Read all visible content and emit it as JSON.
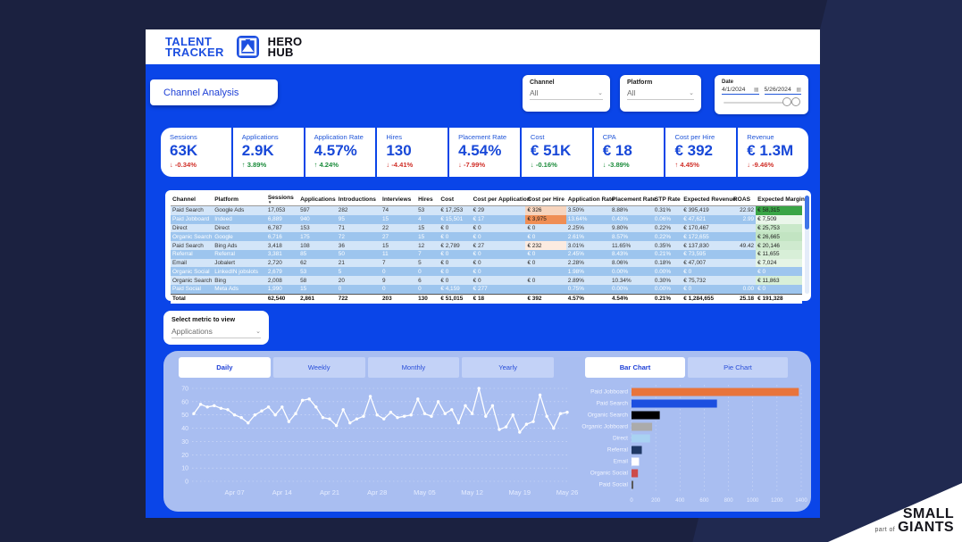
{
  "colors": {
    "canvas_blue": "#0a45e8",
    "dark_background": "#1b2140",
    "panel_blue": "#a9bef1",
    "kpi_value_blue": "#1848d8",
    "good_green": "#1c8c3c",
    "bad_red": "#d02f28"
  },
  "logo": {
    "brand_line1": "TALENT",
    "brand_line2": "TRACKER",
    "product_line1": "HERO",
    "product_line2": "HUB"
  },
  "page": {
    "tab": "Channel Analysis"
  },
  "filters": {
    "channel": {
      "label": "Channel",
      "value": "All"
    },
    "platform": {
      "label": "Platform",
      "value": "All"
    },
    "date": {
      "label": "Date",
      "start": "4/1/2024",
      "end": "5/26/2024"
    }
  },
  "kpis": [
    {
      "label": "Sessions",
      "value": "63K",
      "arrow": "↓",
      "delta": "-0.34%",
      "sentiment": "bad"
    },
    {
      "label": "Applications",
      "value": "2.9K",
      "arrow": "↑",
      "delta": "3.89%",
      "sentiment": "good"
    },
    {
      "label": "Application Rate",
      "value": "4.57%",
      "arrow": "↑",
      "delta": "4.24%",
      "sentiment": "good"
    },
    {
      "label": "Hires",
      "value": "130",
      "arrow": "↓",
      "delta": "-4.41%",
      "sentiment": "bad"
    },
    {
      "label": "Placement Rate",
      "value": "4.54%",
      "arrow": "↓",
      "delta": "-7.99%",
      "sentiment": "bad"
    },
    {
      "label": "Cost",
      "value": "€ 51K",
      "arrow": "↓",
      "delta": "-0.16%",
      "sentiment": "good"
    },
    {
      "label": "CPA",
      "value": "€ 18",
      "arrow": "↓",
      "delta": "-3.89%",
      "sentiment": "good"
    },
    {
      "label": "Cost per Hire",
      "value": "€ 392",
      "arrow": "↑",
      "delta": "4.45%",
      "sentiment": "bad"
    },
    {
      "label": "Revenue",
      "value": "€ 1.3M",
      "arrow": "↓",
      "delta": "-9.46%",
      "sentiment": "bad"
    }
  ],
  "table": {
    "columns": [
      "Channel",
      "Platform",
      "Sessions",
      "Applications",
      "Introductions",
      "Interviews",
      "Hires",
      "Cost",
      "Cost per Application",
      "Cost per Hire",
      "Application Rate",
      "Placement Rate",
      "STP Rate",
      "Expected Revenue",
      "ROAS",
      "Expected Margin"
    ],
    "sorted_column_index": 2,
    "col_widths": [
      7.3,
      9.2,
      5.6,
      6.6,
      7.6,
      6.2,
      3.9,
      5.6,
      9.4,
      7.0,
      7.6,
      7.4,
      5.0,
      8.6,
      4.2,
      8.0
    ],
    "rows": [
      {
        "cells": [
          "Paid Search",
          "Google Ads",
          "17,053",
          "597",
          "282",
          "74",
          "53",
          "€ 17,253",
          "€ 29",
          "€ 326",
          "3.50%",
          "8.88%",
          "0.31%",
          "€ 395,419",
          "22.92",
          "€ 58,315"
        ],
        "hl": {
          "9": "#f7d4bd",
          "15": "#3aa546"
        }
      },
      {
        "cells": [
          "Paid Jobboard",
          "Indeed",
          "6,889",
          "940",
          "95",
          "15",
          "4",
          "€ 15,501",
          "€ 17",
          "€ 3,975",
          "13.64%",
          "0.43%",
          "0.06%",
          "€ 47,621",
          "2.99",
          "€ 7,509"
        ],
        "hl": {
          "9": "#ef8e55",
          "15": "#eaf6ea"
        }
      },
      {
        "cells": [
          "Direct",
          "Direct",
          "6,787",
          "153",
          "71",
          "22",
          "15",
          "€ 0",
          "€ 0",
          "€ 0",
          "2.25%",
          "9.80%",
          "0.22%",
          "€ 170,467",
          "",
          "€ 25,753"
        ],
        "hl": {
          "15": "#c9e8c9"
        }
      },
      {
        "cells": [
          "Organic Search",
          "Google",
          "6,716",
          "175",
          "72",
          "27",
          "15",
          "€ 0",
          "€ 0",
          "€ 0",
          "2.61%",
          "8.57%",
          "0.22%",
          "€ 172,655",
          "",
          "€ 26,665"
        ],
        "hl": {
          "15": "#c2e4c2"
        }
      },
      {
        "cells": [
          "Paid Search",
          "Bing Ads",
          "3,418",
          "108",
          "36",
          "15",
          "12",
          "€ 2,789",
          "€ 27",
          "€ 232",
          "3.01%",
          "11.65%",
          "0.35%",
          "€ 137,830",
          "49.42",
          "€ 20,146"
        ],
        "hl": {
          "9": "#fcebe0",
          "15": "#cfeacf"
        }
      },
      {
        "cells": [
          "Referral",
          "Referral",
          "3,381",
          "85",
          "50",
          "11",
          "7",
          "€ 0",
          "€ 0",
          "€ 0",
          "2.45%",
          "8.43%",
          "0.21%",
          "€ 73,595",
          "",
          "€ 11,655"
        ],
        "hl": {
          "15": "#d8efd8"
        }
      },
      {
        "cells": [
          "Email",
          "Jobalert",
          "2,720",
          "62",
          "21",
          "7",
          "5",
          "€ 0",
          "€ 0",
          "€ 0",
          "2.28%",
          "8.06%",
          "0.18%",
          "€ 47,007",
          "",
          "€ 7,024"
        ],
        "hl": {
          "15": "#e5f4e5"
        }
      },
      {
        "cells": [
          "Organic Social",
          "LinkedIN jobslots",
          "2,679",
          "53",
          "5",
          "0",
          "0",
          "€ 0",
          "€ 0",
          "",
          "1.98%",
          "0.00%",
          "0.00%",
          "€ 0",
          "",
          "€ 0"
        ],
        "hl": {}
      },
      {
        "cells": [
          "Organic Search",
          "Bing",
          "2,008",
          "58",
          "20",
          "9",
          "6",
          "€ 0",
          "€ 0",
          "€ 0",
          "2.89%",
          "10.34%",
          "0.30%",
          "€ 75,732",
          "",
          "€ 11,863"
        ],
        "hl": {
          "15": "#d8efd8"
        }
      },
      {
        "cells": [
          "Paid Social",
          "Meta Ads",
          "1,990",
          "15",
          "0",
          "0",
          "0",
          "€ 4,159",
          "€ 277",
          "",
          "0.75%",
          "0.00%",
          "0.00%",
          "€ 0",
          "0.00",
          "€ 0"
        ],
        "hl": {}
      }
    ],
    "total": [
      "Total",
      "",
      "62,540",
      "2,861",
      "722",
      "203",
      "130",
      "€ 51,015",
      "€ 18",
      "€ 392",
      "4.57%",
      "4.54%",
      "0.21%",
      "€ 1,284,655",
      "25.18",
      "€ 191,328"
    ]
  },
  "metric_selector": {
    "label": "Select metric to view",
    "value": "Applications"
  },
  "bottom": {
    "period_tabs": [
      {
        "label": "Daily",
        "selected": true
      },
      {
        "label": "Weekly",
        "selected": false
      },
      {
        "label": "Monthly",
        "selected": false
      },
      {
        "label": "Yearly",
        "selected": false
      }
    ],
    "chart_tabs": [
      {
        "label": "Bar Chart",
        "selected": true
      },
      {
        "label": "Pie Chart",
        "selected": false
      }
    ]
  },
  "chart_data": [
    {
      "type": "line",
      "name": "Applications per day (Daily)",
      "ylim": [
        0,
        70
      ],
      "yticks": [
        0,
        10,
        20,
        30,
        40,
        50,
        60,
        70
      ],
      "x_tick_labels": [
        "Apr 07",
        "Apr 14",
        "Apr 21",
        "Apr 28",
        "May 05",
        "May 12",
        "May 19",
        "May 26"
      ],
      "x_tick_indices": [
        6,
        13,
        20,
        27,
        34,
        41,
        48,
        55
      ],
      "values": [
        51,
        58,
        56,
        57,
        55,
        54,
        50,
        48,
        44,
        50,
        53,
        56,
        50,
        56,
        45,
        51,
        61,
        62,
        56,
        48,
        47,
        42,
        54,
        44,
        47,
        49,
        64,
        50,
        47,
        52,
        48,
        49,
        50,
        62,
        51,
        49,
        60,
        51,
        54,
        44,
        57,
        51,
        70,
        49,
        57,
        39,
        41,
        50,
        37,
        43,
        45,
        65,
        49,
        40,
        51,
        52
      ],
      "line_color": "#ffffff",
      "grid": "dotted horizontal"
    },
    {
      "type": "bar",
      "orientation": "horizontal",
      "name": "Applications by channel (Bar Chart)",
      "categories": [
        "Paid Jobboard",
        "Paid Search",
        "Organic Search",
        "Organic Jobboard",
        "Direct",
        "Referral",
        "Email",
        "Organic Social",
        "Paid Social"
      ],
      "values": [
        1380,
        705,
        233,
        170,
        153,
        85,
        62,
        53,
        15
      ],
      "colors": [
        "#e8743b",
        "#1c4fe0",
        "#000000",
        "#ababab",
        "#a9d2f2",
        "#1f3864",
        "#ffffff",
        "#cc4b4b",
        "#595959"
      ],
      "xlim": [
        0,
        1400
      ],
      "xticks": [
        0,
        200,
        400,
        600,
        800,
        1000,
        1200,
        1400
      ],
      "grid": "dotted vertical"
    }
  ],
  "corner": {
    "small": "part of",
    "brand1": "SMALL",
    "brand2": "GIANTS"
  }
}
